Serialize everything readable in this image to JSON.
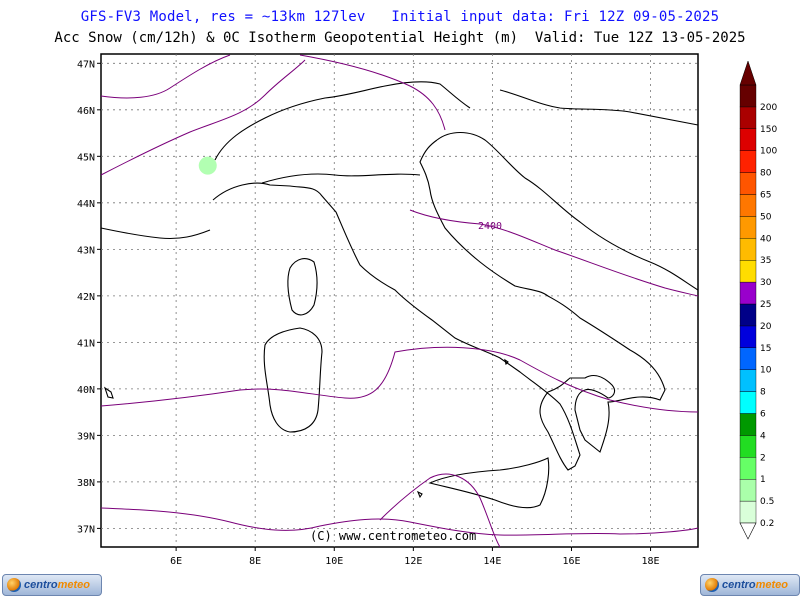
{
  "header": {
    "line1": "GFS-FV3 Model, res = ~13km 127lev   Initial input data: Fri 12Z 09-05-2025",
    "line2": "Acc Snow (cm/12h) & 0C Isotherm Geopotential Height (m)  Valid: Tue 12Z 13-05-2025"
  },
  "map": {
    "lon_labels": [
      "6E",
      "8E",
      "10E",
      "12E",
      "14E",
      "16E",
      "18E"
    ],
    "lat_labels": [
      "37N",
      "38N",
      "39N",
      "40N",
      "41N",
      "42N",
      "43N",
      "44N",
      "45N",
      "46N",
      "47N"
    ],
    "lon_range": [
      4.1,
      19.2
    ],
    "lat_range": [
      36.6,
      47.2
    ],
    "isotherm_label": "2400",
    "copyright": "(C) www.centrometeo.com"
  },
  "legend": {
    "levels": [
      "0.2",
      "0.5",
      "1",
      "2",
      "4",
      "6",
      "8",
      "10",
      "15",
      "20",
      "25",
      "30",
      "35",
      "40",
      "50",
      "65",
      "80",
      "100",
      "150",
      "200"
    ],
    "colors": [
      "#d9ffd9",
      "#aaffaa",
      "#66ff66",
      "#22dd22",
      "#009900",
      "#00ffff",
      "#00c0ff",
      "#0066ff",
      "#0000dd",
      "#000088",
      "#9900cc",
      "#ffdd00",
      "#ffbb00",
      "#ff9900",
      "#ff7700",
      "#ff5500",
      "#ff2200",
      "#dd0000",
      "#aa0000",
      "#660000"
    ],
    "top_arrow_color": "#660000"
  },
  "snow_spots": [
    {
      "lon": 6.8,
      "lat": 44.8,
      "value": 0.5
    }
  ],
  "logos": {
    "left": {
      "text_a": "centro",
      "text_b": "meteo"
    },
    "right": {
      "text_a": "centro",
      "text_b": "meteo"
    }
  }
}
